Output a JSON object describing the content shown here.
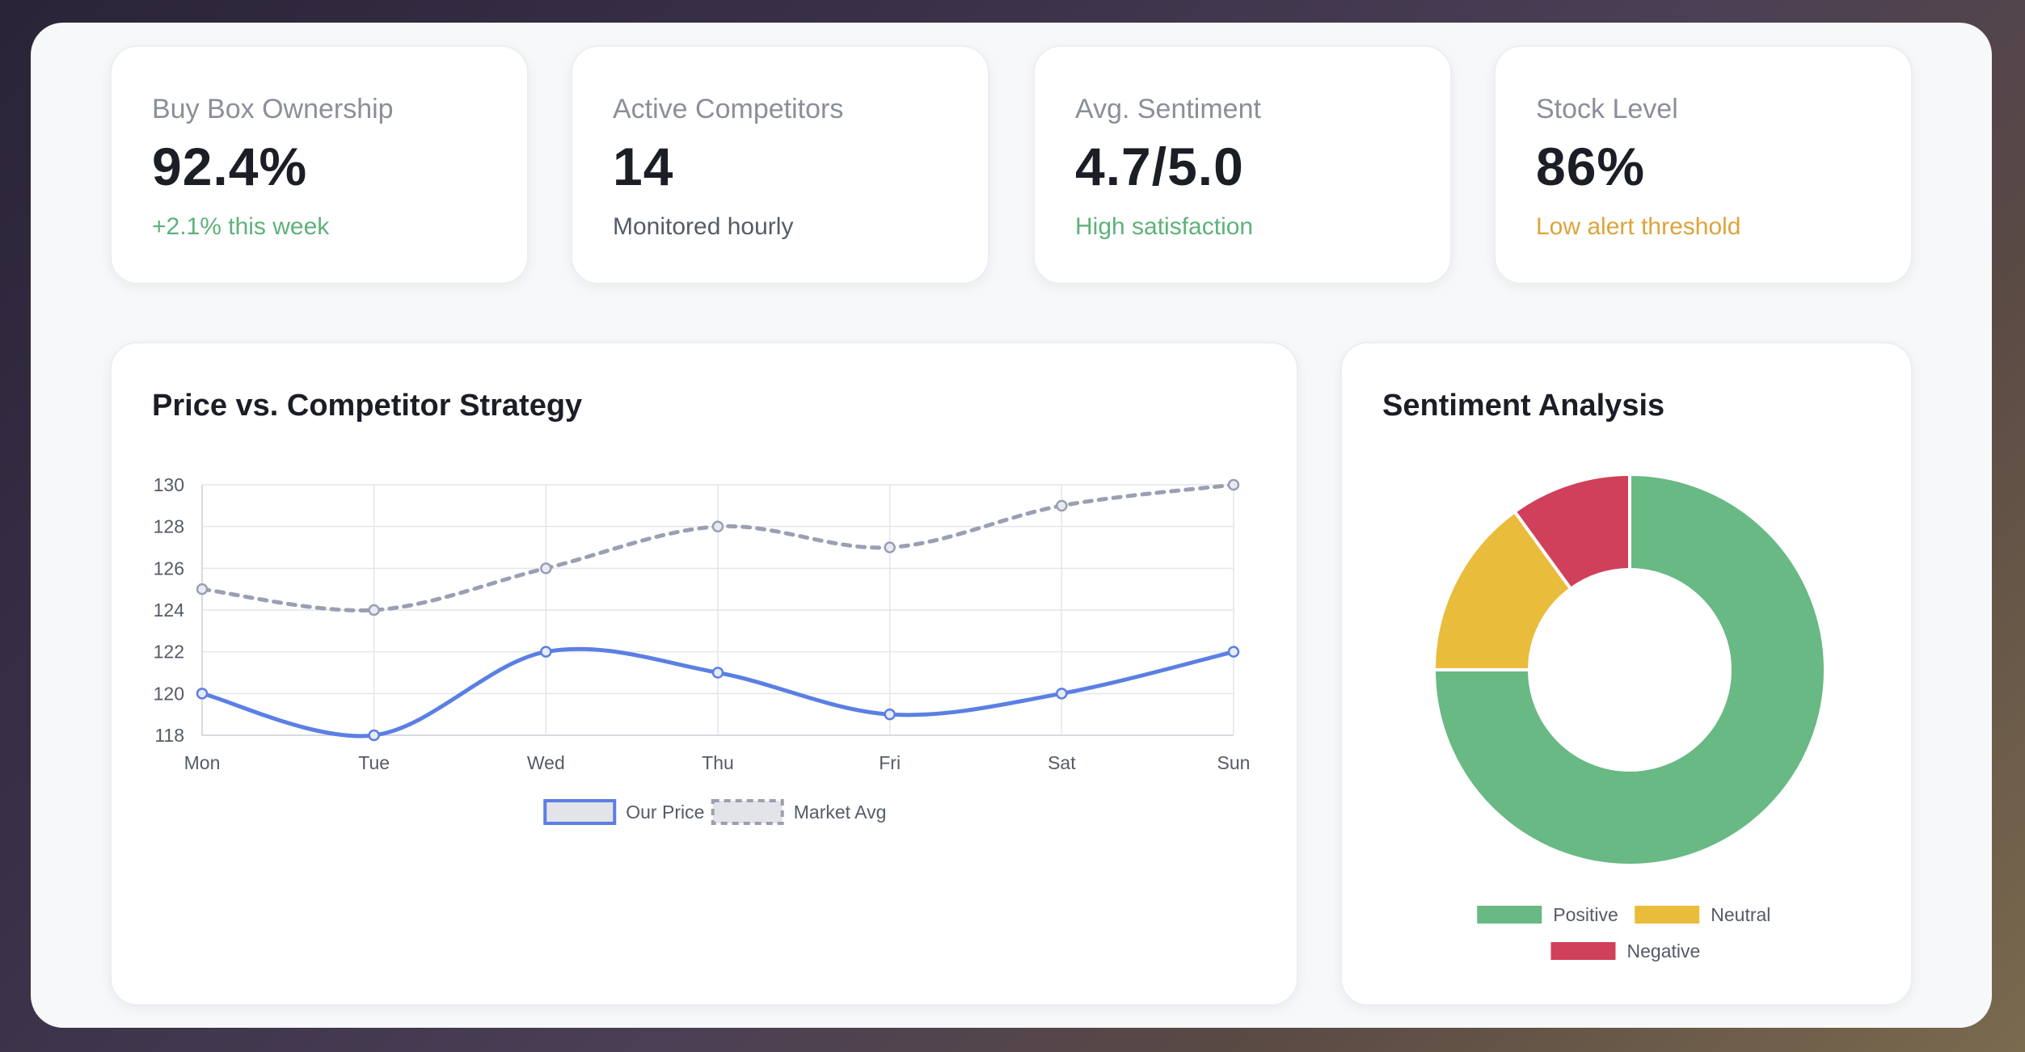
{
  "stats": [
    {
      "label": "Buy Box Ownership",
      "value": "92.4%",
      "note": "+2.1% this week",
      "note_color": "#5db27a"
    },
    {
      "label": "Active Competitors",
      "value": "14",
      "note": "Monitored hourly",
      "note_color": "#555b66"
    },
    {
      "label": "Avg. Sentiment",
      "value": "4.7/5.0",
      "note": "High satisfaction",
      "note_color": "#5db27a"
    },
    {
      "label": "Stock Level",
      "value": "86%",
      "note": "Low alert threshold",
      "note_color": "#dea33b"
    }
  ],
  "price_chart": {
    "title": "Price vs. Competitor Strategy"
  },
  "sentiment_chart": {
    "title": "Sentiment Analysis"
  },
  "chart_data": [
    {
      "type": "line",
      "title": "Price vs. Competitor Strategy",
      "x": [
        "Mon",
        "Tue",
        "Wed",
        "Thu",
        "Fri",
        "Sat",
        "Sun"
      ],
      "series": [
        {
          "name": "Our Price",
          "values": [
            120,
            118,
            122,
            121,
            119,
            120,
            122
          ],
          "color": "#5b7fe3",
          "style": "solid"
        },
        {
          "name": "Market Avg",
          "values": [
            125,
            124,
            126,
            128,
            127,
            129,
            130
          ],
          "color": "#9aa0b2",
          "style": "dashed"
        }
      ],
      "ylim": [
        118,
        130
      ],
      "yticks": [
        118,
        120,
        122,
        124,
        126,
        128,
        130
      ],
      "grid": true,
      "legend": "bottom"
    },
    {
      "type": "pie",
      "title": "Sentiment Analysis",
      "categories": [
        "Positive",
        "Neutral",
        "Negative"
      ],
      "values": [
        75,
        15,
        10
      ],
      "colors": [
        "#68b983",
        "#eabc3b",
        "#d1405a"
      ],
      "donut": true,
      "legend": "bottom"
    }
  ]
}
